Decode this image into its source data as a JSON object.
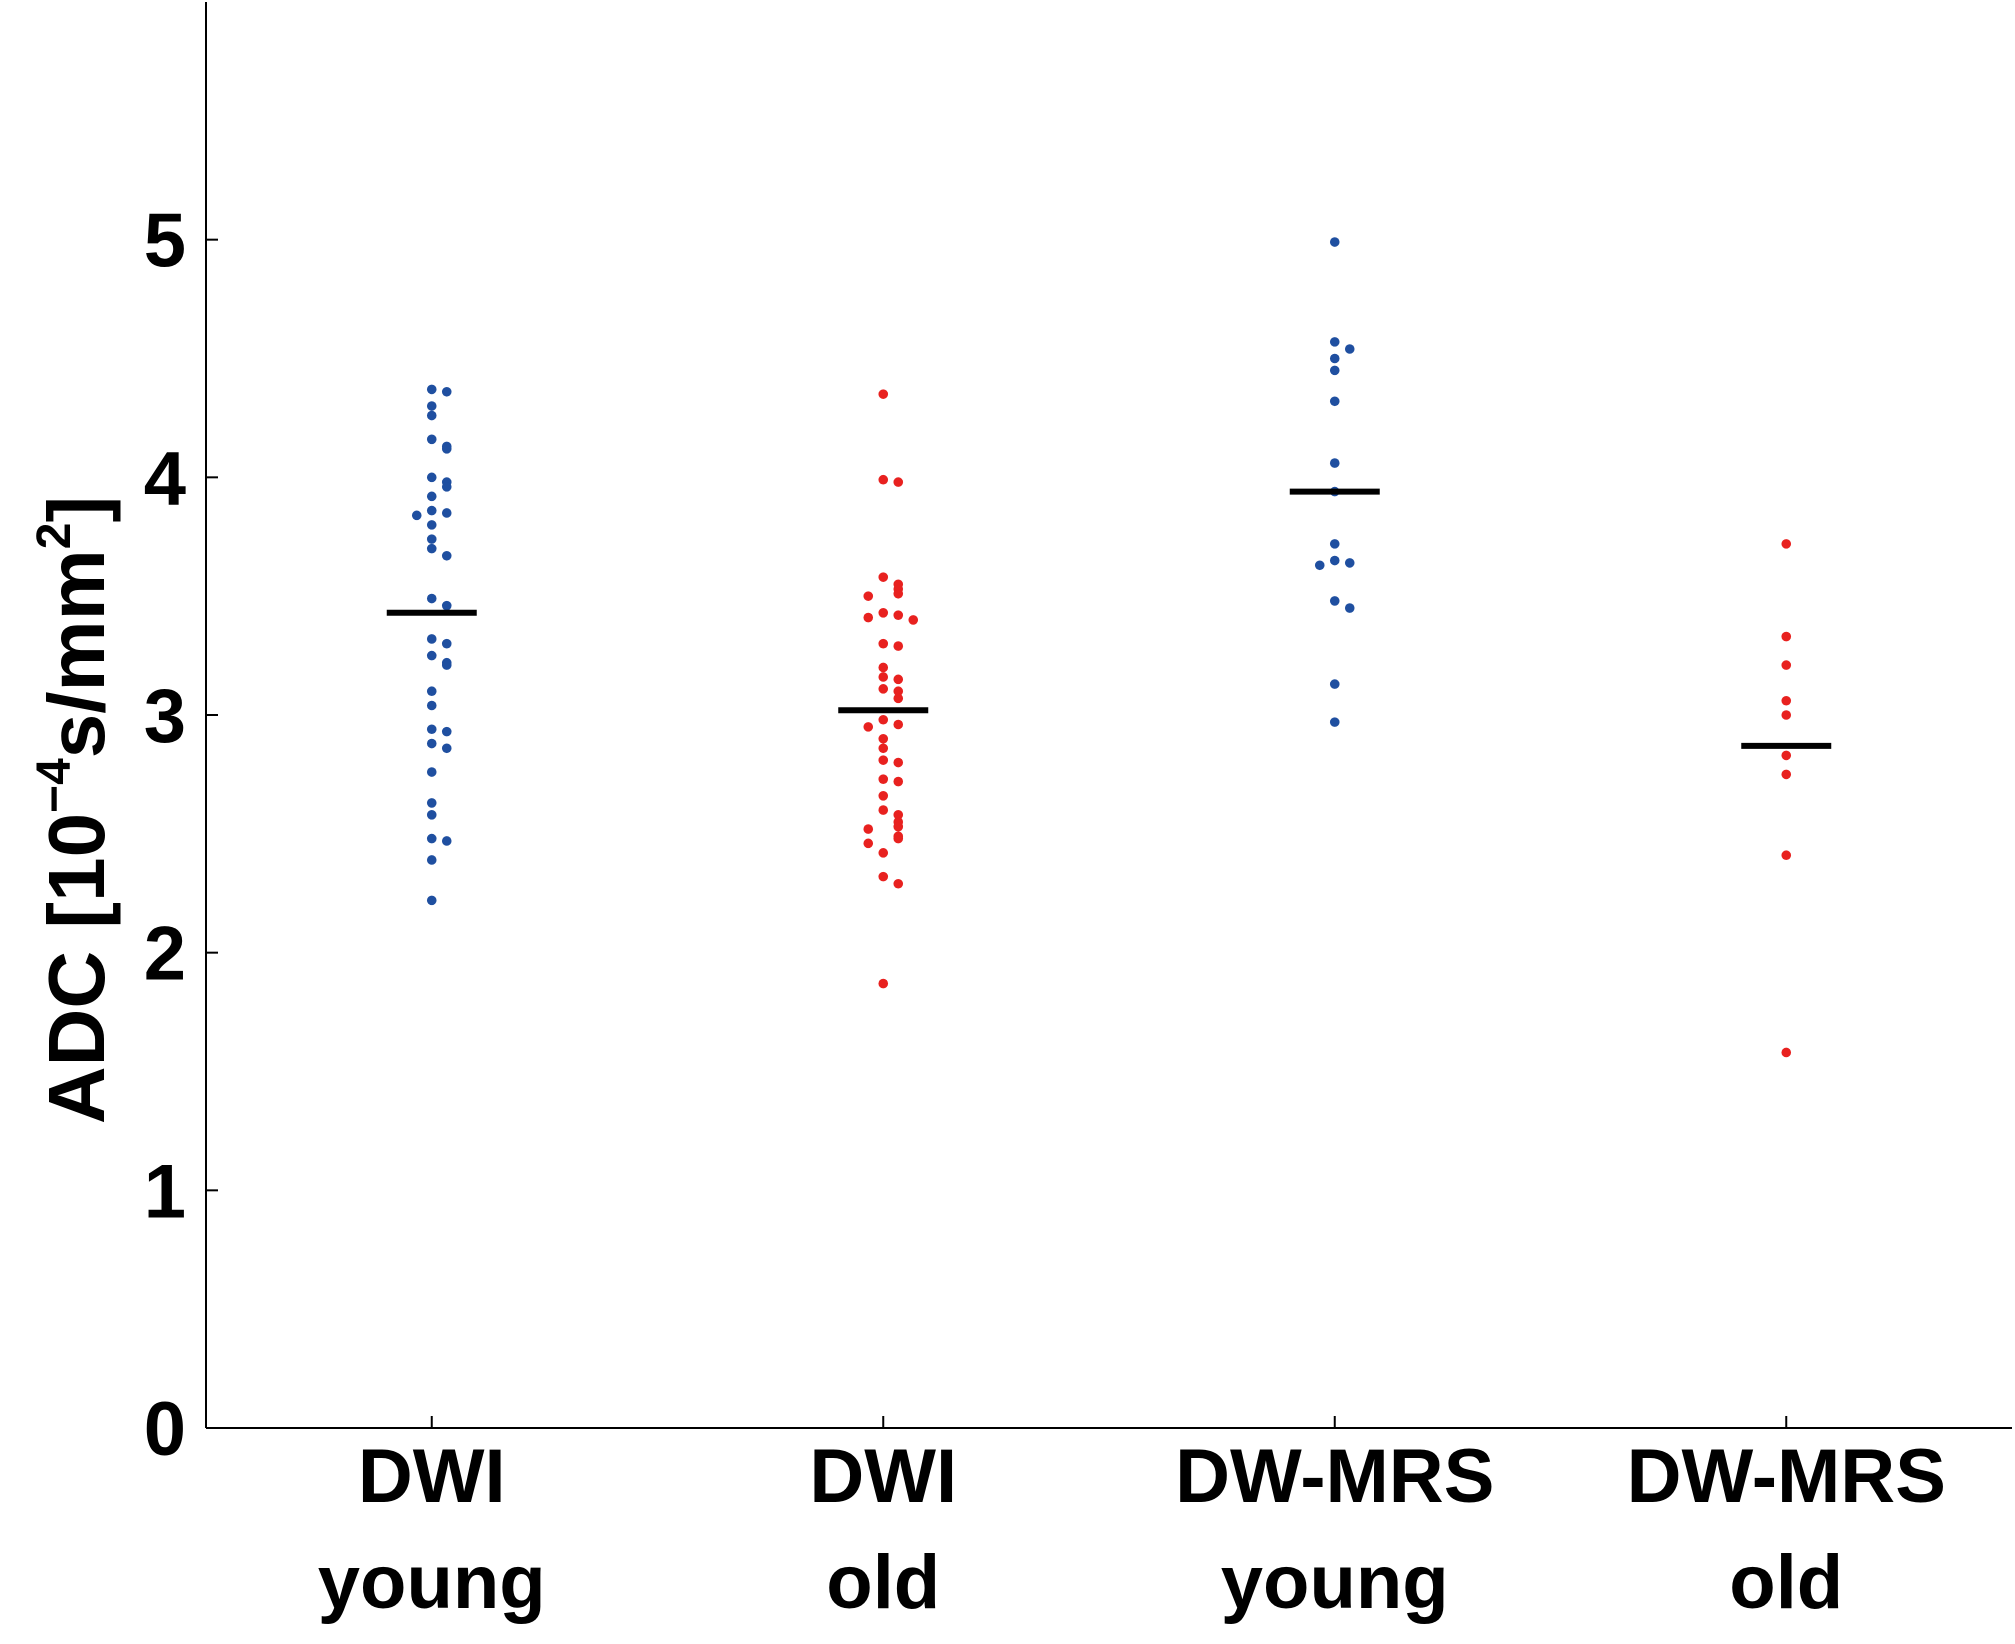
{
  "chart_data": {
    "type": "scatter",
    "title": "",
    "xlabel": "",
    "ylabel": {
      "prefix": "ADC [10",
      "exponent": "−4",
      "unit": "s/mm",
      "unit_exponent": "2",
      "suffix": "]"
    },
    "ylim": [
      0,
      6
    ],
    "yticks": [
      "0",
      "1",
      "2",
      "3",
      "4",
      "5"
    ],
    "categories": [
      {
        "line1": "DWI",
        "line2": "young"
      },
      {
        "line1": "DWI",
        "line2": "old"
      },
      {
        "line1": "DW-MRS",
        "line2": "young"
      },
      {
        "line1": "DW-MRS",
        "line2": "old"
      }
    ],
    "colors": {
      "young": "#1f4fa0",
      "old": "#e8211f",
      "axis": "#000000",
      "mean": "#000000"
    },
    "series": [
      {
        "name": "DWI young",
        "color": "#1f4fa0",
        "mean": 3.43,
        "values": [
          4.37,
          4.36,
          4.3,
          4.26,
          4.16,
          4.13,
          4.12,
          4.0,
          3.98,
          3.96,
          3.92,
          3.86,
          3.85,
          3.84,
          3.8,
          3.74,
          3.7,
          3.67,
          3.49,
          3.46,
          3.32,
          3.3,
          3.25,
          3.22,
          3.21,
          3.1,
          3.04,
          2.94,
          2.93,
          2.88,
          2.86,
          2.76,
          2.63,
          2.58,
          2.48,
          2.47,
          2.39,
          2.22
        ]
      },
      {
        "name": "DWI old",
        "color": "#e8211f",
        "mean": 3.02,
        "values": [
          4.35,
          3.99,
          3.98,
          3.58,
          3.55,
          3.53,
          3.51,
          3.5,
          3.43,
          3.42,
          3.41,
          3.4,
          3.3,
          3.29,
          3.2,
          3.16,
          3.15,
          3.11,
          3.1,
          3.07,
          2.98,
          2.96,
          2.95,
          2.9,
          2.86,
          2.81,
          2.8,
          2.73,
          2.72,
          2.66,
          2.6,
          2.58,
          2.55,
          2.53,
          2.52,
          2.49,
          2.48,
          2.46,
          2.42,
          2.32,
          2.29,
          1.87
        ]
      },
      {
        "name": "DW-MRS young",
        "color": "#1f4fa0",
        "mean": 3.94,
        "values": [
          4.99,
          4.57,
          4.54,
          4.5,
          4.45,
          4.32,
          4.06,
          3.94,
          3.72,
          3.65,
          3.64,
          3.63,
          3.48,
          3.45,
          3.13,
          2.97
        ]
      },
      {
        "name": "DW-MRS old",
        "color": "#e8211f",
        "mean": 2.87,
        "values": [
          3.72,
          3.33,
          3.21,
          3.06,
          3.0,
          2.83,
          2.75,
          2.41,
          1.58
        ]
      }
    ]
  }
}
